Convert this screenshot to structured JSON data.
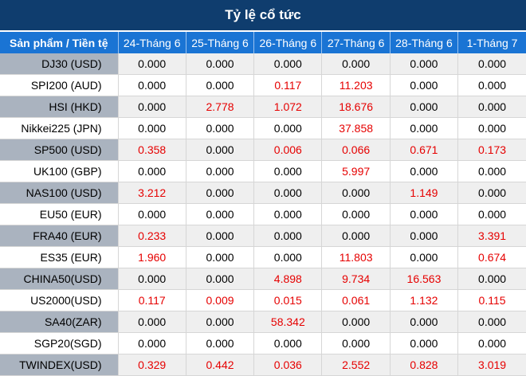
{
  "title": "Tỷ lệ cổ tức",
  "header": [
    "Sản phẩm / Tiền tệ",
    "24-Tháng 6",
    "25-Tháng 6",
    "26-Tháng 6",
    "27-Tháng 6",
    "28-Tháng 6",
    "1-Tháng 7"
  ],
  "colors": {
    "title_bg": "#0f3d6e",
    "header_bg": "#1a74d4",
    "label_shade": "#aab3bf",
    "nonzero_text": "#e60000"
  },
  "rows": [
    {
      "label": "DJ30 (USD)",
      "values": [
        "0.000",
        "0.000",
        "0.000",
        "0.000",
        "0.000",
        "0.000"
      ]
    },
    {
      "label": "SPI200 (AUD)",
      "values": [
        "0.000",
        "0.000",
        "0.117",
        "11.203",
        "0.000",
        "0.000"
      ]
    },
    {
      "label": "HSI (HKD)",
      "values": [
        "0.000",
        "2.778",
        "1.072",
        "18.676",
        "0.000",
        "0.000"
      ]
    },
    {
      "label": "Nikkei225 (JPN)",
      "values": [
        "0.000",
        "0.000",
        "0.000",
        "37.858",
        "0.000",
        "0.000"
      ]
    },
    {
      "label": "SP500 (USD)",
      "values": [
        "0.358",
        "0.000",
        "0.006",
        "0.066",
        "0.671",
        "0.173"
      ]
    },
    {
      "label": "UK100 (GBP)",
      "values": [
        "0.000",
        "0.000",
        "0.000",
        "5.997",
        "0.000",
        "0.000"
      ]
    },
    {
      "label": "NAS100 (USD)",
      "values": [
        "3.212",
        "0.000",
        "0.000",
        "0.000",
        "1.149",
        "0.000"
      ]
    },
    {
      "label": "EU50 (EUR)",
      "values": [
        "0.000",
        "0.000",
        "0.000",
        "0.000",
        "0.000",
        "0.000"
      ]
    },
    {
      "label": "FRA40 (EUR)",
      "values": [
        "0.233",
        "0.000",
        "0.000",
        "0.000",
        "0.000",
        "3.391"
      ]
    },
    {
      "label": "ES35 (EUR)",
      "values": [
        "1.960",
        "0.000",
        "0.000",
        "11.803",
        "0.000",
        "0.674"
      ]
    },
    {
      "label": "CHINA50(USD)",
      "values": [
        "0.000",
        "0.000",
        "4.898",
        "9.734",
        "16.563",
        "0.000"
      ]
    },
    {
      "label": "US2000(USD)",
      "values": [
        "0.117",
        "0.009",
        "0.015",
        "0.061",
        "1.132",
        "0.115"
      ]
    },
    {
      "label": "SA40(ZAR)",
      "values": [
        "0.000",
        "0.000",
        "58.342",
        "0.000",
        "0.000",
        "0.000"
      ]
    },
    {
      "label": "SGP20(SGD)",
      "values": [
        "0.000",
        "0.000",
        "0.000",
        "0.000",
        "0.000",
        "0.000"
      ]
    },
    {
      "label": "TWINDEX(USD)",
      "values": [
        "0.329",
        "0.442",
        "0.036",
        "2.552",
        "0.828",
        "3.019"
      ]
    }
  ]
}
